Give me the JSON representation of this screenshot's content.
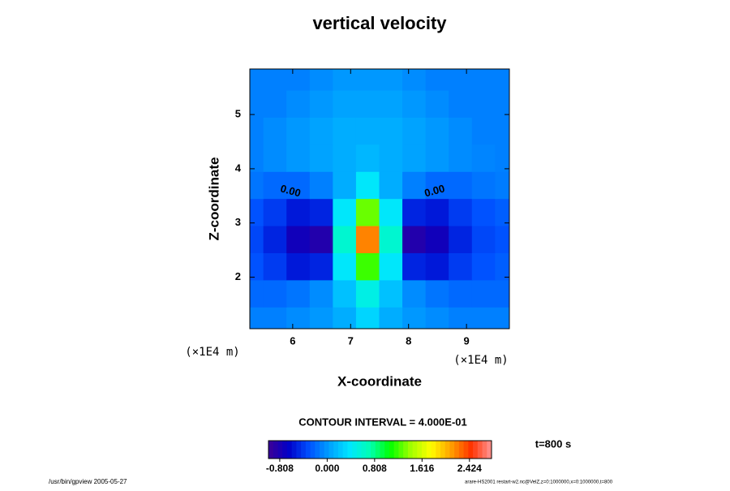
{
  "chart_data": {
    "type": "contour",
    "title": "vertical velocity",
    "xlabel": "X-coordinate",
    "ylabel": "Z-coordinate",
    "x_unit_label": "(×1E4 m)",
    "y_unit_label": "(×1E4 m)",
    "x": [
      5.3,
      5.7,
      6.1,
      6.5,
      6.9,
      7.3,
      7.7,
      8.1,
      8.5,
      8.9,
      9.3,
      9.7
    ],
    "z": [
      1.2,
      1.7,
      2.2,
      2.7,
      3.2,
      3.7,
      4.2,
      4.7,
      5.2,
      5.7
    ],
    "values": [
      [
        -0.1,
        -0.1,
        -0.05,
        0,
        0.1,
        0.3,
        0.1,
        0,
        -0.05,
        -0.1,
        -0.1,
        -0.1
      ],
      [
        -0.2,
        -0.2,
        -0.15,
        -0.05,
        0.2,
        0.5,
        0.2,
        -0.05,
        -0.15,
        -0.2,
        -0.2,
        -0.2
      ],
      [
        -0.3,
        -0.4,
        -0.55,
        -0.5,
        0.4,
        1.2,
        0.4,
        -0.5,
        -0.55,
        -0.4,
        -0.3,
        -0.25
      ],
      [
        -0.35,
        -0.5,
        -0.75,
        -0.85,
        0.6,
        2.2,
        0.6,
        -0.85,
        -0.75,
        -0.5,
        -0.35,
        -0.3
      ],
      [
        -0.3,
        -0.4,
        -0.55,
        -0.5,
        0.4,
        1.3,
        0.4,
        -0.5,
        -0.55,
        -0.4,
        -0.3,
        -0.25
      ],
      [
        -0.15,
        -0.2,
        -0.2,
        -0.1,
        0.1,
        0.4,
        0.1,
        -0.1,
        -0.2,
        -0.2,
        -0.15,
        -0.12
      ],
      [
        -0.1,
        -0.05,
        0,
        0.05,
        0.1,
        0.15,
        0.1,
        0.05,
        0,
        -0.05,
        -0.08,
        -0.1
      ],
      [
        -0.1,
        -0.05,
        0,
        0.05,
        0.1,
        0.1,
        0.1,
        0.05,
        0,
        -0.05,
        -0.1,
        -0.1
      ],
      [
        -0.1,
        -0.1,
        -0.05,
        0,
        0.05,
        0.05,
        0.05,
        0,
        -0.05,
        -0.1,
        -0.1,
        -0.1
      ],
      [
        -0.1,
        -0.1,
        -0.1,
        -0.05,
        0,
        0,
        0,
        -0.05,
        -0.1,
        -0.1,
        -0.1,
        -0.1
      ]
    ],
    "xlim": [
      5.26,
      9.74
    ],
    "ylim": [
      1.05,
      5.84
    ],
    "xticks": [
      6,
      7,
      8,
      9
    ],
    "yticks": [
      2,
      3,
      4,
      5
    ],
    "contour_labels": [
      "0.00",
      "0.00"
    ],
    "contour_interval_text": "CONTOUR INTERVAL = 4.000E-01",
    "time_text": "t=800 s",
    "clim": [
      -1.0,
      2.8
    ],
    "colorbar_ticks": [
      -0.808,
      {
        "value": 0,
        "label": "0.000"
      },
      0.808,
      1.616,
      2.424
    ],
    "colormap": [
      "#3c0096",
      "#0000c8",
      "#0050ff",
      "#00a0ff",
      "#00e6ff",
      "#00ffb4",
      "#00ff00",
      "#a0ff00",
      "#ffff00",
      "#ffa000",
      "#ff3200",
      "#ff9696"
    ],
    "footer_left": "/usr/bin/gpview 2005-05-27",
    "footer_right": "arare-HS2001 restart-w2.nc@VelZ,z=0:1000000,x=0:1000000,t=800"
  }
}
